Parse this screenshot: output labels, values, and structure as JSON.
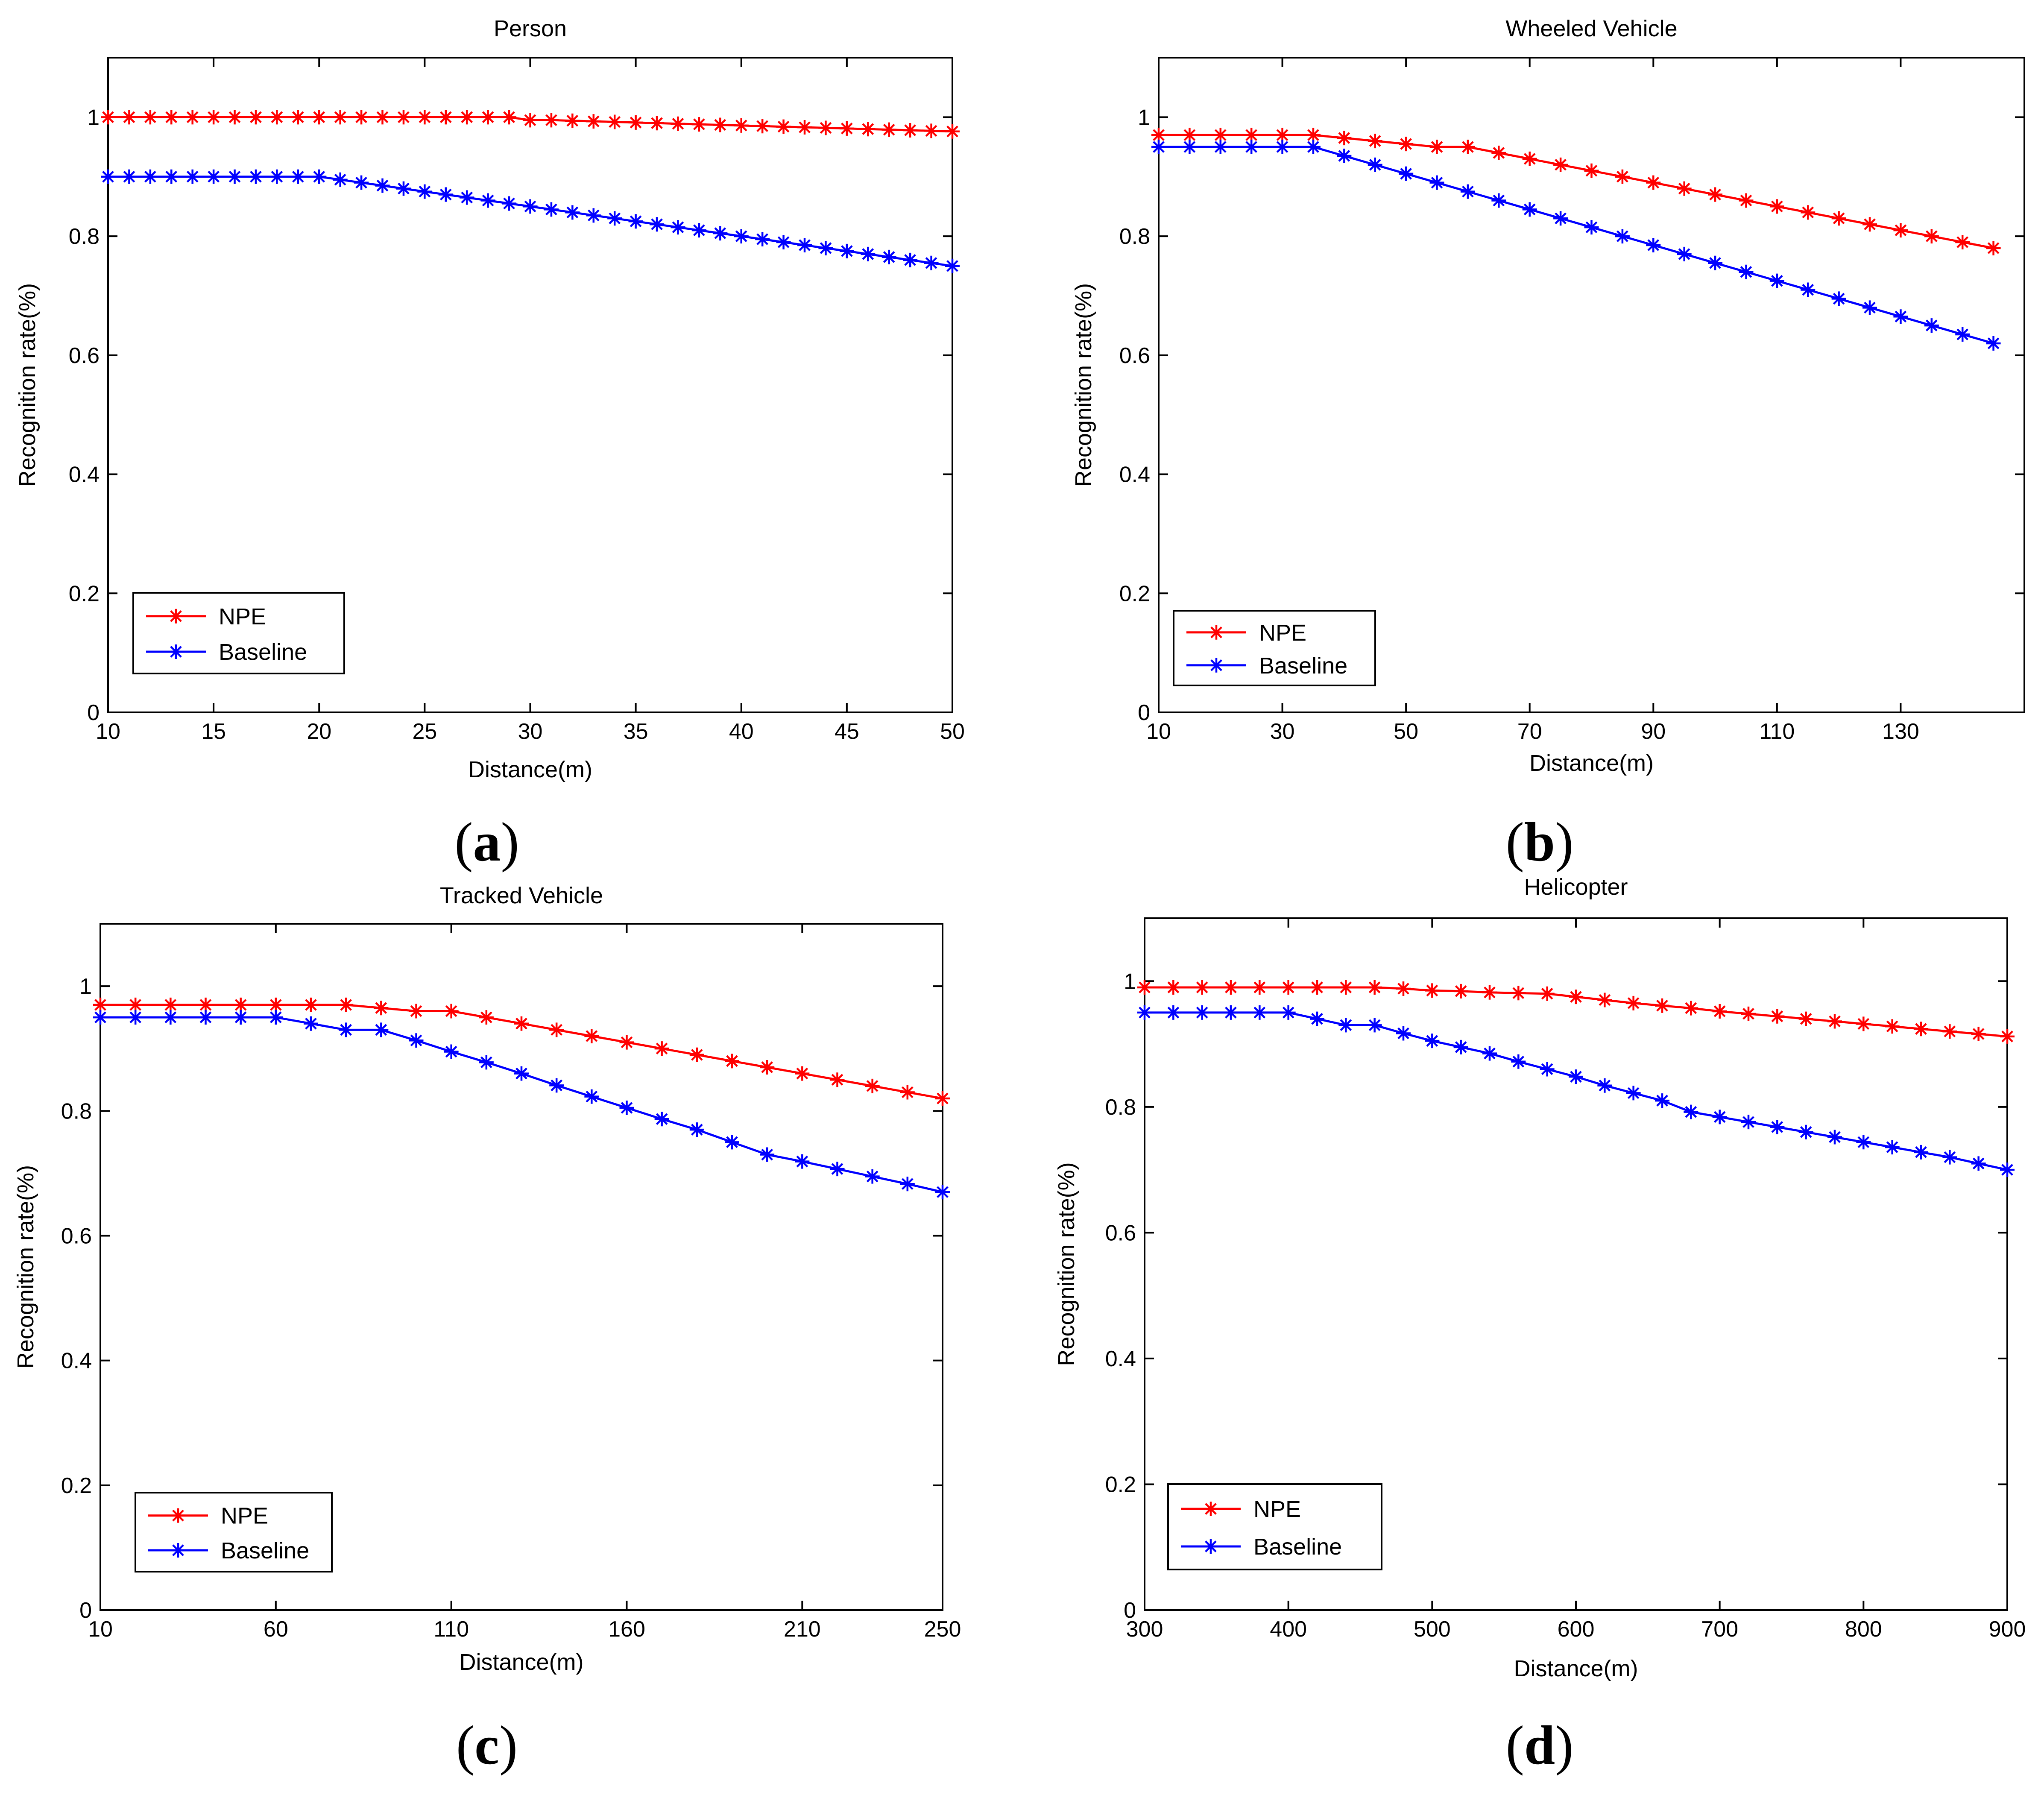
{
  "chart_data": [
    {
      "type": "line",
      "panel_label": "a",
      "title": "Person",
      "xlabel": "Distance(m)",
      "ylabel": "Recognition rate(%)",
      "xlim": [
        10,
        50
      ],
      "ylim": [
        0,
        1.1
      ],
      "xticks": [
        10,
        15,
        20,
        25,
        30,
        35,
        40,
        45,
        50
      ],
      "yticks": [
        0,
        0.2,
        0.4,
        0.6,
        0.8,
        1
      ],
      "ytick_labels": [
        "0",
        "0.2",
        "0.4",
        "0.6",
        "0.8",
        "1"
      ],
      "legend": {
        "position": "bottom-left",
        "entries": [
          "NPE",
          "Baseline"
        ]
      },
      "series": [
        {
          "name": "NPE",
          "color": "#ff0000",
          "x": [
            10,
            11,
            12,
            13,
            14,
            15,
            16,
            17,
            18,
            19,
            20,
            21,
            22,
            23,
            24,
            25,
            26,
            27,
            28,
            29,
            30,
            31,
            32,
            33,
            34,
            35,
            36,
            37,
            38,
            39,
            40,
            41,
            42,
            43,
            44,
            45,
            46,
            47,
            48,
            49,
            50
          ],
          "y": [
            1,
            1,
            1,
            1,
            1,
            1,
            1,
            1,
            1,
            1,
            1,
            1,
            1,
            1,
            1,
            1,
            1,
            1,
            1,
            1,
            0.995,
            0.995,
            0.994,
            0.993,
            0.992,
            0.991,
            0.99,
            0.989,
            0.988,
            0.987,
            0.986,
            0.985,
            0.984,
            0.983,
            0.982,
            0.981,
            0.98,
            0.979,
            0.978,
            0.977,
            0.976
          ]
        },
        {
          "name": "Baseline",
          "color": "#0000ff",
          "x": [
            10,
            11,
            12,
            13,
            14,
            15,
            16,
            17,
            18,
            19,
            20,
            21,
            22,
            23,
            24,
            25,
            26,
            27,
            28,
            29,
            30,
            31,
            32,
            33,
            34,
            35,
            36,
            37,
            38,
            39,
            40,
            41,
            42,
            43,
            44,
            45,
            46,
            47,
            48,
            49,
            50
          ],
          "y": [
            0.9,
            0.9,
            0.9,
            0.9,
            0.9,
            0.9,
            0.9,
            0.9,
            0.9,
            0.9,
            0.9,
            0.895,
            0.89,
            0.885,
            0.88,
            0.875,
            0.87,
            0.865,
            0.86,
            0.855,
            0.85,
            0.845,
            0.84,
            0.835,
            0.83,
            0.825,
            0.82,
            0.815,
            0.81,
            0.805,
            0.8,
            0.795,
            0.79,
            0.785,
            0.78,
            0.775,
            0.77,
            0.765,
            0.76,
            0.755,
            0.75
          ]
        }
      ]
    },
    {
      "type": "line",
      "panel_label": "b",
      "title": "Wheeled Vehicle",
      "xlabel": "Distance(m)",
      "ylabel": "Recognition rate(%)",
      "xlim": [
        10,
        150
      ],
      "ylim": [
        0,
        1.1
      ],
      "xticks": [
        10,
        30,
        50,
        70,
        90,
        110,
        130
      ],
      "yticks": [
        0,
        0.2,
        0.4,
        0.6,
        0.8,
        1
      ],
      "ytick_labels": [
        "0",
        "0.2",
        "0.4",
        "0.6",
        "0.8",
        "1"
      ],
      "legend": {
        "position": "bottom-left",
        "entries": [
          "NPE",
          "Baseline"
        ]
      },
      "series": [
        {
          "name": "NPE",
          "color": "#ff0000",
          "x": [
            10,
            15,
            20,
            25,
            30,
            35,
            40,
            45,
            50,
            55,
            60,
            65,
            70,
            75,
            80,
            85,
            90,
            95,
            100,
            105,
            110,
            115,
            120,
            125,
            130,
            135,
            140,
            145
          ],
          "y": [
            0.97,
            0.97,
            0.97,
            0.97,
            0.97,
            0.97,
            0.965,
            0.96,
            0.955,
            0.95,
            0.95,
            0.94,
            0.93,
            0.92,
            0.91,
            0.9,
            0.89,
            0.88,
            0.87,
            0.86,
            0.85,
            0.84,
            0.83,
            0.82,
            0.81,
            0.8,
            0.79,
            0.78
          ]
        },
        {
          "name": "Baseline",
          "color": "#0000ff",
          "x": [
            10,
            15,
            20,
            25,
            30,
            35,
            40,
            45,
            50,
            55,
            60,
            65,
            70,
            75,
            80,
            85,
            90,
            95,
            100,
            105,
            110,
            115,
            120,
            125,
            130,
            135,
            140,
            145
          ],
          "y": [
            0.95,
            0.95,
            0.95,
            0.95,
            0.95,
            0.95,
            0.935,
            0.92,
            0.905,
            0.89,
            0.875,
            0.86,
            0.845,
            0.83,
            0.815,
            0.8,
            0.785,
            0.77,
            0.755,
            0.74,
            0.725,
            0.71,
            0.695,
            0.68,
            0.665,
            0.65,
            0.635,
            0.62
          ]
        }
      ]
    },
    {
      "type": "line",
      "panel_label": "c",
      "title": "Tracked Vehicle",
      "xlabel": "Distance(m)",
      "ylabel": "Recognition rate(%)",
      "xlim": [
        10,
        250
      ],
      "ylim": [
        0,
        1.1
      ],
      "xticks": [
        10,
        60,
        110,
        160,
        210,
        250
      ],
      "yticks": [
        0,
        0.2,
        0.4,
        0.6,
        0.8,
        1
      ],
      "ytick_labels": [
        "0",
        "0.2",
        "0.4",
        "0.6",
        "0.8",
        "1"
      ],
      "legend": {
        "position": "bottom-left",
        "entries": [
          "NPE",
          "Baseline"
        ]
      },
      "series": [
        {
          "name": "NPE",
          "color": "#ff0000",
          "x": [
            10,
            20,
            30,
            40,
            50,
            60,
            70,
            80,
            90,
            100,
            110,
            120,
            130,
            140,
            150,
            160,
            170,
            180,
            190,
            200,
            210,
            220,
            230,
            240,
            250
          ],
          "y": [
            0.97,
            0.97,
            0.97,
            0.97,
            0.97,
            0.97,
            0.97,
            0.97,
            0.965,
            0.96,
            0.96,
            0.95,
            0.94,
            0.93,
            0.92,
            0.91,
            0.9,
            0.89,
            0.88,
            0.87,
            0.86,
            0.85,
            0.84,
            0.83,
            0.82
          ]
        },
        {
          "name": "Baseline",
          "color": "#0000ff",
          "x": [
            10,
            20,
            30,
            40,
            50,
            60,
            70,
            80,
            90,
            100,
            110,
            120,
            130,
            140,
            150,
            160,
            170,
            180,
            190,
            200,
            210,
            220,
            230,
            240,
            250
          ],
          "y": [
            0.95,
            0.95,
            0.95,
            0.95,
            0.95,
            0.95,
            0.94,
            0.93,
            0.93,
            0.913,
            0.895,
            0.878,
            0.86,
            0.841,
            0.823,
            0.805,
            0.787,
            0.77,
            0.75,
            0.73,
            0.719,
            0.707,
            0.695,
            0.683,
            0.67
          ]
        }
      ]
    },
    {
      "type": "line",
      "panel_label": "d",
      "title": "Helicopter",
      "xlabel": "Distance(m)",
      "ylabel": "Recognition rate(%)",
      "xlim": [
        300,
        900
      ],
      "ylim": [
        0,
        1.1
      ],
      "xticks": [
        300,
        400,
        500,
        600,
        700,
        800,
        900
      ],
      "yticks": [
        0,
        0.2,
        0.4,
        0.6,
        0.8,
        1
      ],
      "ytick_labels": [
        "0",
        "0.2",
        "0.4",
        "0.6",
        "0.8",
        "1"
      ],
      "legend": {
        "position": "bottom-left",
        "entries": [
          "NPE",
          "Baseline"
        ]
      },
      "series": [
        {
          "name": "NPE",
          "color": "#ff0000",
          "x": [
            300,
            320,
            340,
            360,
            380,
            400,
            420,
            440,
            460,
            480,
            500,
            520,
            540,
            560,
            580,
            600,
            620,
            640,
            660,
            680,
            700,
            720,
            740,
            760,
            780,
            800,
            820,
            840,
            860,
            880,
            900
          ],
          "y": [
            0.99,
            0.99,
            0.99,
            0.99,
            0.99,
            0.99,
            0.99,
            0.99,
            0.99,
            0.988,
            0.985,
            0.984,
            0.982,
            0.981,
            0.98,
            0.975,
            0.97,
            0.965,
            0.961,
            0.957,
            0.952,
            0.948,
            0.944,
            0.94,
            0.936,
            0.932,
            0.928,
            0.924,
            0.92,
            0.916,
            0.912
          ]
        },
        {
          "name": "Baseline",
          "color": "#0000ff",
          "x": [
            300,
            320,
            340,
            360,
            380,
            400,
            420,
            440,
            460,
            480,
            500,
            520,
            540,
            560,
            580,
            600,
            620,
            640,
            660,
            680,
            700,
            720,
            740,
            760,
            780,
            800,
            820,
            840,
            860,
            880,
            900
          ],
          "y": [
            0.95,
            0.95,
            0.95,
            0.95,
            0.95,
            0.95,
            0.94,
            0.93,
            0.93,
            0.917,
            0.905,
            0.895,
            0.885,
            0.872,
            0.86,
            0.848,
            0.834,
            0.822,
            0.81,
            0.792,
            0.784,
            0.776,
            0.768,
            0.76,
            0.752,
            0.744,
            0.736,
            0.728,
            0.72,
            0.71,
            0.7
          ]
        }
      ]
    }
  ]
}
